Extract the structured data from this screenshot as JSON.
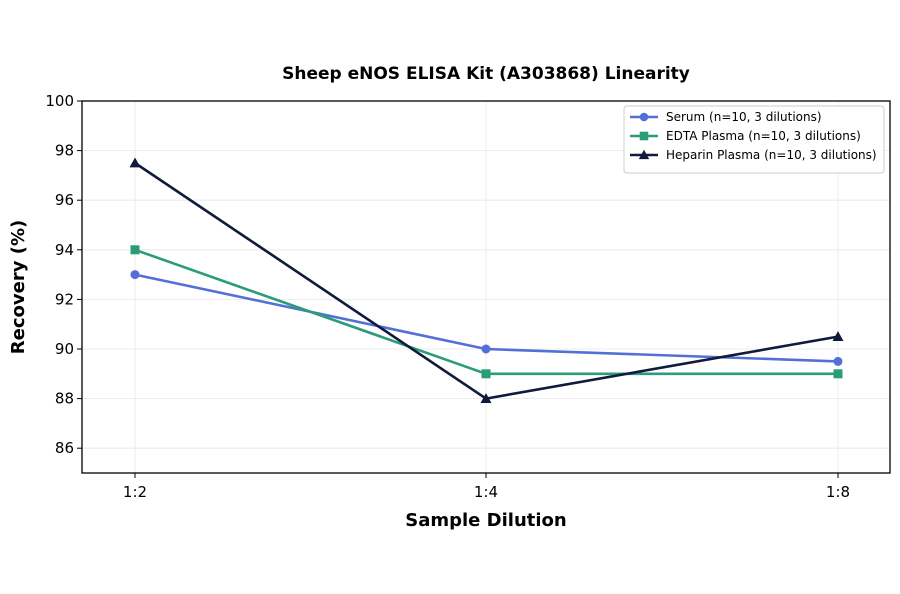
{
  "chart_data": {
    "type": "line",
    "title": "Sheep eNOS ELISA Kit (A303868) Linearity",
    "xlabel": "Sample Dilution",
    "ylabel": "Recovery (%)",
    "categories": [
      "1:2",
      "1:4",
      "1:8"
    ],
    "ylim": [
      85,
      100
    ],
    "yticks": [
      86,
      88,
      90,
      92,
      94,
      96,
      98,
      100
    ],
    "grid": true,
    "legend_position": "top-right",
    "series": [
      {
        "name": "Serum (n=10, 3 dilutions)",
        "values": [
          93,
          90,
          89.5
        ],
        "color": "#5470d6",
        "marker": "circle"
      },
      {
        "name": "EDTA Plasma (n=10, 3 dilutions)",
        "values": [
          94,
          89,
          89
        ],
        "color": "#2a9d78",
        "marker": "square"
      },
      {
        "name": "Heparin Plasma (n=10, 3 dilutions)",
        "values": [
          97.5,
          88,
          90.5
        ],
        "color": "#0f1a3e",
        "marker": "triangle"
      }
    ]
  }
}
